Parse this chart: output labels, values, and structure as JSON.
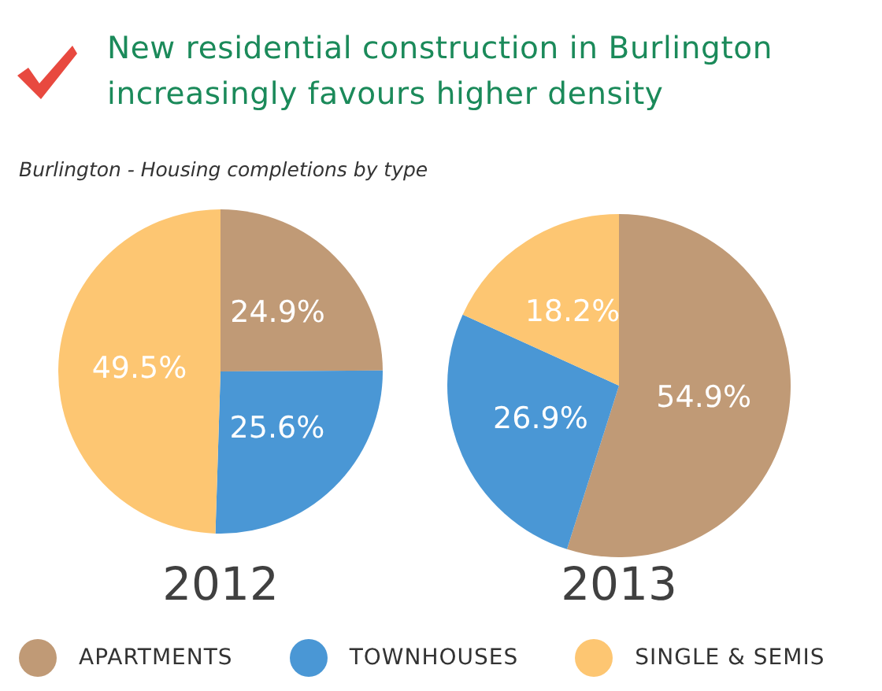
{
  "chart_data": [
    {
      "type": "pie",
      "title": "New residential construction in Burlington increasingly favours higher density",
      "subtitle": "Burlington - Housing completions by type",
      "xlabel": "2012",
      "legend": "bottom",
      "categories": [
        "APARTMENTS",
        "TOWNHOUSES",
        "SINGLE & SEMIS"
      ],
      "values": [
        24.9,
        25.6,
        49.5
      ],
      "colors": [
        "#c09a76",
        "#4a97d5",
        "#fdc672"
      ],
      "value_labels": [
        "24.9%",
        "25.6%",
        "49.5%"
      ]
    },
    {
      "type": "pie",
      "xlabel": "2013",
      "categories": [
        null,
        null,
        null
      ],
      "values": [
        54.9,
        26.9,
        18.2
      ],
      "colors": [
        "#c09a76",
        "#4a97d5",
        "#fdc672"
      ],
      "value_labels": [
        "54.9%",
        "26.9%",
        "18.2%"
      ]
    }
  ]
}
